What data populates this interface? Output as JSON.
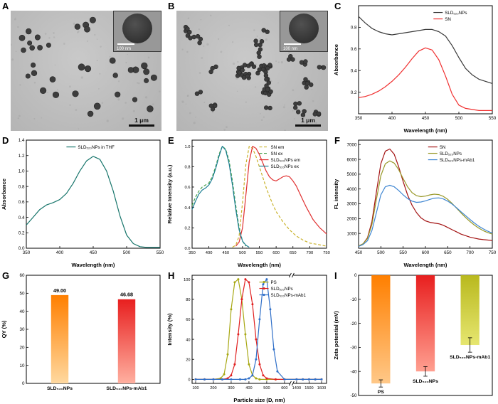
{
  "panels": {
    "A": {
      "label": "A",
      "scalebar": "1 μm",
      "inset_scalebar": "100 nm"
    },
    "B": {
      "label": "B",
      "scalebar": "1 μm",
      "inset_scalebar": "100 nm"
    },
    "C": {
      "label": "C"
    },
    "D": {
      "label": "D"
    },
    "E": {
      "label": "E"
    },
    "F": {
      "label": "F"
    },
    "G": {
      "label": "G"
    },
    "H": {
      "label": "H"
    },
    "I": {
      "label": "I"
    }
  },
  "chart_data": [
    {
      "panel": "C",
      "type": "line",
      "xlabel": "Wavelength (nm)",
      "ylabel": "Absorbance",
      "xlim": [
        350,
        550
      ],
      "ylim": [
        0,
        1.0
      ],
      "xticks": [
        350,
        400,
        450,
        500,
        550
      ],
      "yticks": [
        0.2,
        0.4,
        0.6,
        0.8
      ],
      "ydec": 1,
      "legend": {
        "x": 0.56,
        "y": 0.03
      },
      "series": [
        {
          "name": "SLD₅₂₀NPs",
          "color": "#3a3a3a",
          "x": [
            350,
            360,
            370,
            380,
            390,
            400,
            410,
            420,
            430,
            440,
            450,
            460,
            470,
            480,
            490,
            500,
            510,
            520,
            530,
            540,
            550
          ],
          "y": [
            0.9,
            0.84,
            0.79,
            0.76,
            0.74,
            0.73,
            0.74,
            0.75,
            0.76,
            0.77,
            0.78,
            0.78,
            0.76,
            0.72,
            0.63,
            0.52,
            0.42,
            0.36,
            0.32,
            0.3,
            0.28
          ]
        },
        {
          "name": "SN",
          "color": "#f03030",
          "x": [
            350,
            360,
            370,
            380,
            390,
            400,
            410,
            420,
            430,
            440,
            450,
            460,
            470,
            480,
            490,
            500,
            510,
            520,
            530,
            540,
            550
          ],
          "y": [
            0.15,
            0.16,
            0.18,
            0.21,
            0.25,
            0.3,
            0.36,
            0.43,
            0.51,
            0.58,
            0.61,
            0.59,
            0.5,
            0.35,
            0.18,
            0.08,
            0.05,
            0.04,
            0.03,
            0.03,
            0.03
          ]
        }
      ]
    },
    {
      "panel": "D",
      "type": "line",
      "xlabel": "Wavelength (nm)",
      "ylabel": "Absorbance",
      "xlim": [
        350,
        550
      ],
      "ylim": [
        0,
        1.4
      ],
      "xticks": [
        350,
        400,
        450,
        500,
        550
      ],
      "yticks": [
        0.0,
        0.2,
        0.4,
        0.6,
        0.8,
        1.0,
        1.2,
        1.4
      ],
      "ydec": 1,
      "legend": {
        "x": 0.3,
        "y": 0.03
      },
      "series": [
        {
          "name": "SLD₅₂₀NPs in THF",
          "color": "#17756b",
          "x": [
            350,
            360,
            370,
            380,
            390,
            400,
            410,
            420,
            430,
            440,
            450,
            460,
            470,
            480,
            490,
            500,
            510,
            520,
            530,
            540,
            550
          ],
          "y": [
            0.3,
            0.4,
            0.5,
            0.56,
            0.59,
            0.63,
            0.71,
            0.84,
            1.0,
            1.13,
            1.19,
            1.15,
            1.0,
            0.74,
            0.42,
            0.17,
            0.06,
            0.02,
            0.01,
            0.01,
            0.01
          ]
        }
      ]
    },
    {
      "panel": "E",
      "type": "line",
      "xlabel": "Wavelength (nm)",
      "ylabel": "Relative Intensity (a.u.)",
      "xlim": [
        350,
        750
      ],
      "ylim": [
        0,
        1.06
      ],
      "xticks": [
        350,
        400,
        450,
        500,
        550,
        600,
        650,
        700,
        750
      ],
      "yticks": [
        0.0,
        0.2,
        0.4,
        0.6,
        0.8,
        1.0
      ],
      "ydec": 1,
      "tfs": 5.8,
      "legend": {
        "x": 0.5,
        "y": 0.03
      },
      "series": [
        {
          "name": "SN em",
          "color": "#c9b22a",
          "dash": "4 2.5",
          "x": [
            470,
            480,
            490,
            500,
            510,
            520,
            530,
            540,
            550,
            560,
            570,
            580,
            590,
            600,
            620,
            640,
            660,
            680,
            700,
            720,
            750
          ],
          "y": [
            0.01,
            0.03,
            0.12,
            0.45,
            0.82,
            1.0,
            0.98,
            0.9,
            0.8,
            0.7,
            0.6,
            0.51,
            0.43,
            0.36,
            0.26,
            0.18,
            0.12,
            0.08,
            0.05,
            0.04,
            0.02
          ]
        },
        {
          "name": "SN ex",
          "color": "#46a04a",
          "dash": "4 2.5",
          "x": [
            350,
            360,
            370,
            380,
            390,
            400,
            410,
            420,
            430,
            440,
            450,
            460,
            470,
            480,
            490,
            500,
            510
          ],
          "y": [
            0.42,
            0.5,
            0.56,
            0.6,
            0.62,
            0.64,
            0.7,
            0.8,
            0.92,
            1.0,
            0.97,
            0.86,
            0.66,
            0.42,
            0.2,
            0.07,
            0.02
          ]
        },
        {
          "name": "SLD₅₂₀NPs em",
          "color": "#e03030",
          "x": [
            480,
            490,
            500,
            510,
            520,
            530,
            540,
            550,
            560,
            570,
            580,
            590,
            600,
            610,
            620,
            630,
            640,
            650,
            660,
            670,
            680,
            690,
            700,
            710,
            720,
            730,
            740,
            750
          ],
          "y": [
            0.02,
            0.06,
            0.2,
            0.52,
            0.85,
            1.0,
            0.98,
            0.92,
            0.84,
            0.76,
            0.7,
            0.67,
            0.66,
            0.68,
            0.7,
            0.71,
            0.7,
            0.66,
            0.61,
            0.54,
            0.47,
            0.4,
            0.34,
            0.28,
            0.24,
            0.2,
            0.17,
            0.14
          ]
        },
        {
          "name": "SLD₅₂₀NPs ex",
          "color": "#1d7f93",
          "x": [
            350,
            360,
            370,
            380,
            390,
            400,
            410,
            420,
            430,
            440,
            450,
            460,
            470,
            480,
            490,
            500,
            510,
            520
          ],
          "y": [
            0.38,
            0.46,
            0.53,
            0.57,
            0.59,
            0.62,
            0.68,
            0.78,
            0.9,
            1.0,
            0.96,
            0.83,
            0.62,
            0.38,
            0.18,
            0.07,
            0.03,
            0.01
          ]
        }
      ]
    },
    {
      "panel": "F",
      "type": "line",
      "xlabel": "Wavelength (nm)",
      "ylabel": "FL intensity",
      "xlim": [
        450,
        750
      ],
      "ylim": [
        0,
        7300
      ],
      "xticks": [
        450,
        500,
        550,
        600,
        650,
        700,
        750
      ],
      "yticks": [
        1000,
        2000,
        3000,
        4000,
        5000,
        6000,
        7000
      ],
      "legend": {
        "x": 0.52,
        "y": 0.03
      },
      "series": [
        {
          "name": "SN",
          "color": "#a31313",
          "x": [
            450,
            460,
            470,
            480,
            490,
            500,
            510,
            520,
            530,
            540,
            550,
            560,
            570,
            580,
            590,
            600,
            610,
            620,
            630,
            640,
            650,
            660,
            670,
            680,
            690,
            700,
            710,
            720,
            730,
            740,
            750
          ],
          "y": [
            150,
            300,
            700,
            1800,
            3800,
            5700,
            6550,
            6700,
            6350,
            5500,
            4500,
            3600,
            2900,
            2400,
            2050,
            1850,
            1750,
            1700,
            1650,
            1550,
            1400,
            1250,
            1100,
            950,
            850,
            750,
            680,
            620,
            580,
            550,
            520
          ]
        },
        {
          "name": "SLD₅₂₀NPs",
          "color": "#99992a",
          "x": [
            450,
            460,
            470,
            480,
            490,
            500,
            510,
            520,
            530,
            540,
            550,
            560,
            570,
            580,
            590,
            600,
            610,
            620,
            630,
            640,
            650,
            660,
            670,
            680,
            690,
            700,
            710,
            720,
            730,
            740,
            750
          ],
          "y": [
            150,
            300,
            650,
            1600,
            3300,
            4900,
            5700,
            5900,
            5750,
            5300,
            4700,
            4150,
            3750,
            3550,
            3480,
            3520,
            3600,
            3650,
            3620,
            3500,
            3300,
            3020,
            2700,
            2380,
            2080,
            1800,
            1560,
            1350,
            1180,
            1050,
            950
          ]
        },
        {
          "name": "SLD₅₂₀NPs-mAb1",
          "color": "#3f86d2",
          "x": [
            450,
            460,
            470,
            480,
            490,
            500,
            510,
            520,
            530,
            540,
            550,
            560,
            570,
            580,
            590,
            600,
            610,
            620,
            630,
            640,
            650,
            660,
            670,
            680,
            690,
            700,
            710,
            720,
            730,
            740,
            750
          ],
          "y": [
            120,
            250,
            500,
            1200,
            2400,
            3600,
            4150,
            4250,
            4150,
            3900,
            3600,
            3350,
            3180,
            3100,
            3120,
            3200,
            3300,
            3380,
            3400,
            3330,
            3180,
            2980,
            2730,
            2460,
            2200,
            1940,
            1700,
            1480,
            1300,
            1150,
            1020
          ]
        }
      ]
    },
    {
      "panel": "G",
      "type": "bar",
      "ylabel": "QY (%)",
      "ylim": [
        0,
        60
      ],
      "yticks": [
        0,
        10,
        20,
        30,
        40,
        50,
        60
      ],
      "categories": [
        "SLD₅₂₀NPs",
        "SLD₅₂₀NPs-mAb1"
      ],
      "values": [
        49.0,
        46.68
      ],
      "value_labels": [
        "49.00",
        "46.68"
      ],
      "bar_colors": [
        [
          "#ff7f00",
          "#ffd9a0"
        ],
        [
          "#e81f1f",
          "#ffb0a0"
        ]
      ],
      "label_colors": [
        "#ff7f00",
        "#e81f1f"
      ],
      "bar_frac": 0.26,
      "cat_label_pos": "axis"
    },
    {
      "panel": "H",
      "type": "line",
      "xlabel": "Particle size (D, nm)",
      "ylabel": "Intensity (%)",
      "ylim": [
        -4,
        104
      ],
      "yticks": [
        0,
        20,
        40,
        60,
        80,
        100
      ],
      "tfs": 5.6,
      "x_segments": [
        {
          "from": 80,
          "to": 640,
          "frac": 0.74
        },
        {
          "from": 1360,
          "to": 1640,
          "frac": 0.26
        }
      ],
      "xticks": [
        100,
        200,
        300,
        400,
        500,
        600,
        1400,
        1500,
        1600
      ],
      "legend": {
        "x": 0.5,
        "y": 0.03
      },
      "series": [
        {
          "name": "PS",
          "color": "#a8a814",
          "marker": true,
          "x": [
            100,
            150,
            200,
            240,
            260,
            280,
            300,
            320,
            340,
            360,
            380,
            400,
            420,
            440,
            460,
            500,
            550,
            600,
            1400,
            1450,
            1500,
            1550,
            1600
          ],
          "y": [
            0,
            0,
            0,
            1,
            5,
            25,
            70,
            97,
            100,
            80,
            45,
            15,
            4,
            1,
            0,
            0,
            0,
            0,
            0,
            0,
            0,
            0,
            0
          ]
        },
        {
          "name": "SLD₅₂₀NPs",
          "color": "#e02020",
          "marker": true,
          "x": [
            100,
            150,
            200,
            250,
            280,
            300,
            320,
            340,
            360,
            380,
            400,
            420,
            440,
            460,
            480,
            500,
            550,
            600,
            1400,
            1450,
            1500,
            1550,
            1600
          ],
          "y": [
            0,
            0,
            0,
            0,
            1,
            4,
            15,
            45,
            80,
            100,
            97,
            75,
            40,
            15,
            4,
            1,
            0,
            0,
            0,
            0,
            0,
            0,
            0
          ]
        },
        {
          "name": "SLD₅₂₀NPs-mAb1",
          "color": "#2f6fc8",
          "marker": true,
          "x": [
            100,
            150,
            200,
            250,
            300,
            350,
            380,
            400,
            420,
            440,
            460,
            480,
            500,
            520,
            540,
            560,
            600,
            1400,
            1450,
            1500,
            1550,
            1600
          ],
          "y": [
            0,
            0,
            0,
            0,
            0,
            0,
            0,
            1,
            4,
            20,
            60,
            95,
            100,
            70,
            30,
            8,
            0,
            0,
            0,
            0,
            0,
            0
          ]
        }
      ]
    },
    {
      "panel": "I",
      "type": "bar",
      "ylabel": "Zeta potential (mV)",
      "ylim": [
        -50,
        0
      ],
      "yticks": [
        0,
        -10,
        -20,
        -30,
        -40,
        -50
      ],
      "categories": [
        "PS",
        "SLD₅₂₀NPs",
        "SLD₅₂₀NPs-mAb1"
      ],
      "values": [
        -45,
        -40,
        -29
      ],
      "errors": [
        1.5,
        2,
        3
      ],
      "bar_colors": [
        [
          "#ff7f00",
          "#ffc888"
        ],
        [
          "#e81f1f",
          "#ff9f90"
        ],
        [
          "#b9b91e",
          "#e6e670"
        ]
      ],
      "label_colors": [
        "#ff7f00",
        "#e81f1f",
        "#a8a814"
      ],
      "bar_frac": 0.42,
      "cat_label_pos": "tip",
      "margins": {
        "b": 12
      }
    }
  ]
}
